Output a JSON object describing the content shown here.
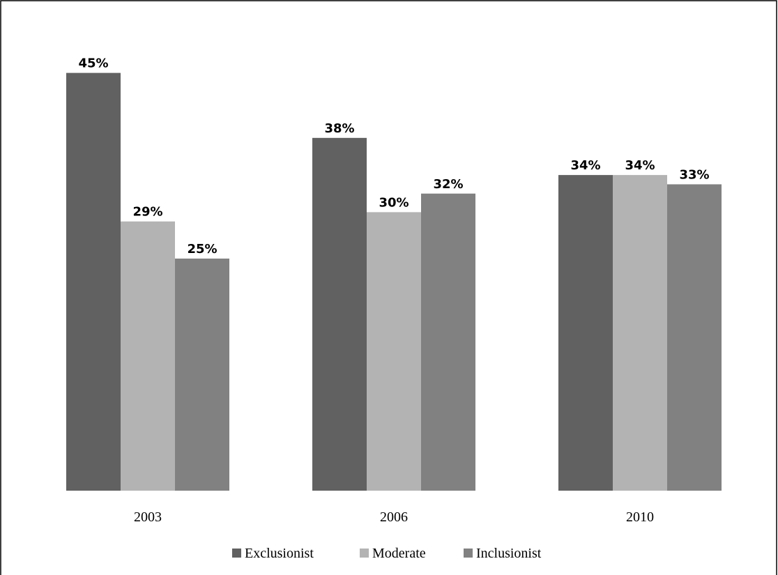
{
  "chart_data": {
    "type": "bar",
    "title": "",
    "xlabel": "",
    "ylabel": "",
    "categories": [
      "2003",
      "2006",
      "2010"
    ],
    "series": [
      {
        "name": "Exclusionist",
        "values": [
          45,
          38,
          34
        ],
        "labels": [
          "45%",
          "38%",
          "34%"
        ],
        "color": "#616161"
      },
      {
        "name": "Moderate",
        "values": [
          29,
          30,
          34
        ],
        "labels": [
          "29%",
          "30%",
          "34%"
        ],
        "color": "#b3b3b3"
      },
      {
        "name": "Inclusionist",
        "values": [
          25,
          32,
          33
        ],
        "labels": [
          "25%",
          "32%",
          "33%"
        ],
        "color": "#818181"
      }
    ],
    "ylim": [
      0,
      45
    ],
    "grid": false,
    "legend_position": "bottom"
  }
}
